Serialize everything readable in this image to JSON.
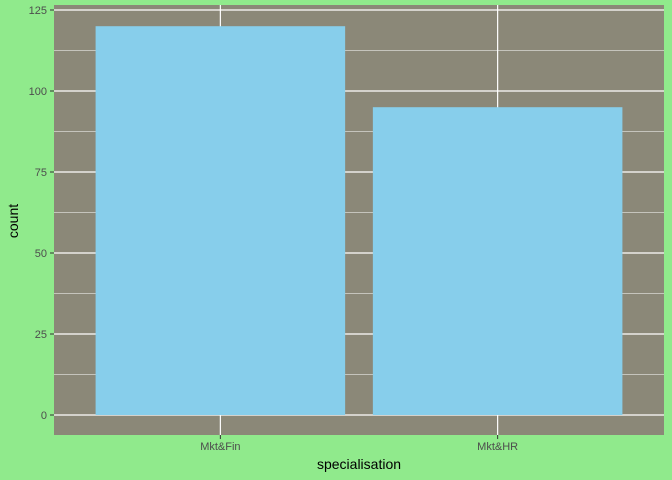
{
  "chart_data": {
    "type": "bar",
    "categories": [
      "Mkt&Fin",
      "Mkt&HR"
    ],
    "values": [
      120,
      95
    ],
    "title": "",
    "xlabel": "specialisation",
    "ylabel": "count",
    "ylim": [
      -6,
      125
    ],
    "yticks": [
      0,
      25,
      50,
      75,
      100,
      125
    ],
    "grid": true,
    "colors": {
      "background": "#90ea8c",
      "panel": "#8b8878",
      "bar": "#87ceeb",
      "grid": "#ffffff"
    }
  }
}
